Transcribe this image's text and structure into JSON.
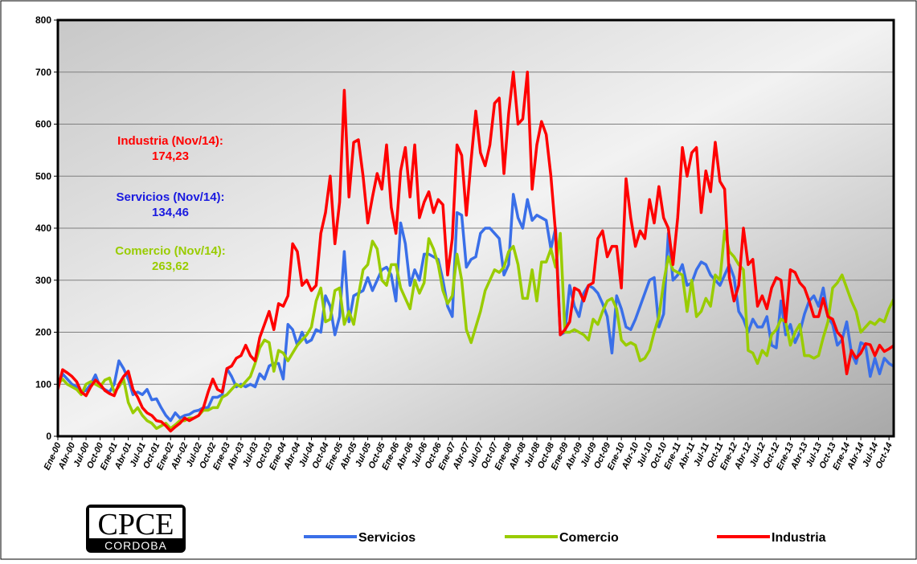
{
  "chart_data": {
    "type": "line",
    "categories": [
      "Ene-00",
      null,
      null,
      "Abr-00",
      null,
      null,
      "Jul-00",
      null,
      null,
      "Oct-00",
      null,
      null,
      "Ene-01",
      null,
      null,
      "Abr-01",
      null,
      null,
      "Jul-01",
      null,
      null,
      "Oct-01",
      null,
      null,
      "Ene-02",
      null,
      null,
      "Abr-02",
      null,
      null,
      "Jul-02",
      null,
      null,
      "Oct-02",
      null,
      null,
      "Ene-03",
      null,
      null,
      "Abr-03",
      null,
      null,
      "Jul-03",
      null,
      null,
      "Oct-03",
      null,
      null,
      "Ene-04",
      null,
      null,
      "Abr-04",
      null,
      null,
      "Jul-04",
      null,
      null,
      "Oct-04",
      null,
      null,
      "Ene-05",
      null,
      null,
      "Abr-05",
      null,
      null,
      "Jul-05",
      null,
      null,
      "Oct-05",
      null,
      null,
      "Ene-06",
      null,
      null,
      "Abr-06",
      null,
      null,
      "Jul-06",
      null,
      null,
      "Oct-06",
      null,
      null,
      "Ene-07",
      null,
      null,
      "Abr-07",
      null,
      null,
      "Jul-07",
      null,
      null,
      "Oct-07",
      null,
      null,
      "Ene-08",
      null,
      null,
      "Abr-08",
      null,
      null,
      "Jul-08",
      null,
      null,
      "Oct-08",
      null,
      null,
      "Ene-09",
      null,
      null,
      "Abr-09",
      null,
      null,
      "Jul-09",
      null,
      null,
      "Oct-09",
      null,
      null,
      "Ene-10",
      null,
      null,
      "Abr-10",
      null,
      null,
      "Jul-10",
      null,
      null,
      "Oct-10",
      null,
      null,
      "Ene-11",
      null,
      null,
      "Abr-11",
      null,
      null,
      "Jul-11",
      null,
      null,
      "Oct-11",
      null,
      null,
      "Ene-12",
      null,
      null,
      "Abr-12",
      null,
      null,
      "Jul-12",
      null,
      null,
      "Oct-12",
      null,
      null,
      "Ene-13",
      null,
      null,
      "Abr-13",
      null,
      null,
      "Jul-13",
      null,
      null,
      "Oct-13",
      null,
      null,
      "Ene-14",
      null,
      null,
      "Abr-14",
      null,
      null,
      "Jul-14",
      null,
      null,
      "Oct-14",
      null
    ],
    "series": [
      {
        "name": "Servicios",
        "color": "#3a6fe8",
        "values": [
          95,
          120,
          110,
          100,
          95,
          85,
          88,
          100,
          118,
          95,
          90,
          85,
          100,
          145,
          130,
          110,
          80,
          85,
          80,
          90,
          70,
          72,
          55,
          40,
          30,
          45,
          35,
          40,
          42,
          48,
          50,
          55,
          55,
          75,
          75,
          80,
          130,
          115,
          95,
          100,
          95,
          100,
          95,
          120,
          110,
          135,
          140,
          140,
          110,
          215,
          205,
          175,
          200,
          180,
          185,
          205,
          200,
          270,
          250,
          195,
          230,
          355,
          220,
          270,
          275,
          280,
          305,
          280,
          300,
          320,
          325,
          310,
          260,
          410,
          370,
          290,
          320,
          300,
          350,
          350,
          345,
          340,
          300,
          250,
          230,
          430,
          425,
          325,
          340,
          345,
          390,
          400,
          400,
          390,
          380,
          310,
          330,
          465,
          420,
          400,
          455,
          415,
          425,
          420,
          415,
          360,
          400,
          195,
          200,
          290,
          250,
          230,
          275,
          290,
          285,
          275,
          255,
          230,
          160,
          270,
          245,
          210,
          205,
          225,
          250,
          275,
          300,
          305,
          210,
          235,
          390,
          300,
          310,
          330,
          290,
          295,
          320,
          335,
          330,
          310,
          300,
          290,
          310,
          330,
          305,
          240,
          225,
          200,
          225,
          210,
          210,
          230,
          175,
          170,
          260,
          195,
          215,
          180,
          200,
          235,
          260,
          270,
          250,
          285,
          230,
          215,
          175,
          185,
          220,
          160,
          140,
          180,
          175,
          115,
          150,
          120,
          150,
          140,
          134.46
        ]
      },
      {
        "name": "Comercio",
        "color": "#99cc00",
        "values": [
          100,
          110,
          100,
          95,
          90,
          80,
          100,
          105,
          100,
          95,
          108,
          112,
          85,
          95,
          110,
          65,
          45,
          55,
          40,
          30,
          25,
          15,
          20,
          25,
          15,
          22,
          30,
          30,
          35,
          35,
          40,
          50,
          50,
          55,
          55,
          75,
          80,
          90,
          100,
          95,
          105,
          115,
          140,
          170,
          185,
          180,
          125,
          165,
          160,
          145,
          160,
          175,
          185,
          195,
          210,
          260,
          285,
          220,
          225,
          280,
          285,
          215,
          240,
          215,
          270,
          320,
          330,
          375,
          360,
          300,
          290,
          330,
          330,
          285,
          265,
          245,
          300,
          275,
          295,
          380,
          360,
          330,
          280,
          255,
          270,
          350,
          300,
          205,
          180,
          210,
          240,
          280,
          300,
          320,
          315,
          325,
          355,
          365,
          330,
          265,
          265,
          320,
          260,
          335,
          335,
          360,
          325,
          390,
          200,
          200,
          205,
          200,
          195,
          185,
          225,
          215,
          240,
          260,
          265,
          245,
          185,
          175,
          180,
          175,
          145,
          150,
          165,
          200,
          230,
          295,
          345,
          320,
          315,
          310,
          240,
          300,
          230,
          240,
          265,
          250,
          310,
          300,
          395,
          355,
          345,
          330,
          320,
          165,
          160,
          140,
          165,
          155,
          195,
          205,
          225,
          220,
          175,
          200,
          215,
          155,
          155,
          150,
          155,
          190,
          220,
          285,
          295,
          310,
          285,
          260,
          240,
          200,
          210,
          220,
          215,
          225,
          220,
          245,
          263.62
        ]
      },
      {
        "name": "Industria",
        "color": "#ff0000",
        "values": [
          90,
          128,
          122,
          115,
          105,
          85,
          78,
          95,
          108,
          100,
          88,
          82,
          78,
          100,
          115,
          125,
          90,
          75,
          55,
          45,
          40,
          30,
          28,
          20,
          10,
          18,
          25,
          35,
          30,
          35,
          40,
          55,
          85,
          110,
          90,
          85,
          130,
          135,
          150,
          155,
          175,
          155,
          145,
          190,
          215,
          240,
          205,
          255,
          250,
          270,
          370,
          355,
          290,
          300,
          280,
          290,
          390,
          430,
          500,
          370,
          450,
          665,
          460,
          565,
          570,
          500,
          410,
          460,
          505,
          475,
          560,
          440,
          390,
          510,
          555,
          460,
          560,
          420,
          450,
          470,
          430,
          455,
          445,
          310,
          380,
          560,
          540,
          425,
          530,
          625,
          545,
          520,
          560,
          640,
          650,
          505,
          620,
          700,
          600,
          610,
          700,
          475,
          560,
          605,
          580,
          500,
          390,
          195,
          205,
          220,
          285,
          280,
          260,
          290,
          295,
          380,
          395,
          345,
          365,
          365,
          285,
          495,
          420,
          365,
          395,
          380,
          455,
          410,
          480,
          420,
          400,
          330,
          420,
          555,
          500,
          545,
          555,
          430,
          510,
          470,
          565,
          490,
          475,
          305,
          260,
          290,
          400,
          330,
          340,
          250,
          270,
          245,
          285,
          305,
          300,
          220,
          320,
          315,
          295,
          285,
          260,
          230,
          230,
          265,
          230,
          225,
          200,
          190,
          120,
          165,
          150,
          160,
          178,
          176,
          155,
          175,
          163,
          168,
          174.23
        ]
      }
    ],
    "ylim": [
      0,
      800
    ],
    "yticks": [
      0,
      100,
      200,
      300,
      400,
      500,
      600,
      700,
      800
    ],
    "grid": true,
    "annotations": [
      {
        "lines": [
          "Industria (Nov/14):",
          "174,23"
        ],
        "color": "#ff0000"
      },
      {
        "lines": [
          "Servicios (Nov/14):",
          "134,46"
        ],
        "color": "#1a1ae0"
      },
      {
        "lines": [
          "Comercio (Nov/14):",
          "263,62"
        ],
        "color": "#99cc00"
      }
    ],
    "logo": {
      "title": "CPCE",
      "subtitle": "CORDOBA"
    }
  }
}
